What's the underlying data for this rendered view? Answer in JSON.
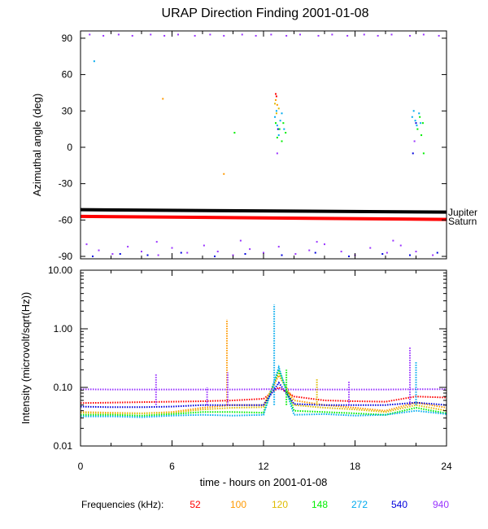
{
  "chart_data": [
    {
      "type": "scatter",
      "title": "URAP Direction Finding  2001-01-08",
      "ylabel": "Azimuthal angle (deg)",
      "xlabel": "",
      "xlim": [
        0,
        24
      ],
      "ylim": [
        -92,
        96
      ],
      "yticks": [
        90,
        60,
        30,
        0,
        -30,
        -60,
        -90
      ],
      "grid": false,
      "reference_lines": [
        {
          "name": "Jupiter",
          "color": "#000000",
          "y_start": -51.5,
          "y_end": -53.5
        },
        {
          "name": "Saturn",
          "color": "#ff0000",
          "y_start": -57,
          "y_end": -59.5
        }
      ],
      "series": [
        {
          "frequency": "940",
          "color": "#9933ff",
          "points": [
            [
              0.6,
              93
            ],
            [
              1.5,
              92
            ],
            [
              2.5,
              93
            ],
            [
              3.4,
              92
            ],
            [
              4.6,
              93
            ],
            [
              5.5,
              92
            ],
            [
              6.4,
              93
            ],
            [
              7.5,
              92
            ],
            [
              8.5,
              93
            ],
            [
              9.4,
              92
            ],
            [
              10.6,
              93
            ],
            [
              11.5,
              92
            ],
            [
              12.5,
              93
            ],
            [
              13.5,
              92
            ],
            [
              14.4,
              93
            ],
            [
              15.6,
              92
            ],
            [
              16.5,
              93
            ],
            [
              17.5,
              92
            ],
            [
              18.6,
              93
            ],
            [
              19.5,
              92
            ],
            [
              20.4,
              93
            ],
            [
              21.6,
              92
            ],
            [
              22.5,
              93
            ],
            [
              23.5,
              92
            ],
            [
              0.4,
              -80
            ],
            [
              1.2,
              -85
            ],
            [
              2.1,
              -88
            ],
            [
              3.1,
              -82
            ],
            [
              4.0,
              -86
            ],
            [
              5.1,
              -89
            ],
            [
              6.0,
              -83
            ],
            [
              7.0,
              -87
            ],
            [
              8.1,
              -81
            ],
            [
              9.0,
              -86
            ],
            [
              10.0,
              -89
            ],
            [
              11.1,
              -84
            ],
            [
              12.0,
              -87
            ],
            [
              13.0,
              -82
            ],
            [
              14.1,
              -88
            ],
            [
              15.0,
              -85
            ],
            [
              16.0,
              -80
            ],
            [
              17.1,
              -86
            ],
            [
              18.0,
              -89
            ],
            [
              19.0,
              -83
            ],
            [
              20.1,
              -87
            ],
            [
              21.0,
              -81
            ],
            [
              22.0,
              -86
            ],
            [
              23.1,
              -89
            ],
            [
              5.0,
              -78
            ],
            [
              10.5,
              -77
            ],
            [
              15.5,
              -78
            ],
            [
              20.5,
              -77
            ],
            [
              12.9,
              -5
            ],
            [
              21.9,
              5
            ]
          ]
        },
        {
          "frequency": "540",
          "color": "#0000dd",
          "points": [
            [
              0.8,
              -90
            ],
            [
              2.6,
              -88
            ],
            [
              4.4,
              -89
            ],
            [
              6.6,
              -87
            ],
            [
              8.8,
              -90
            ],
            [
              10.8,
              -88
            ],
            [
              13.2,
              -89
            ],
            [
              15.4,
              -87
            ],
            [
              17.6,
              -90
            ],
            [
              19.8,
              -88
            ],
            [
              21.6,
              -89
            ],
            [
              23.4,
              -87
            ],
            [
              12.95,
              15
            ],
            [
              22.0,
              20
            ],
            [
              21.8,
              -5
            ]
          ]
        },
        {
          "frequency": "272",
          "color": "#00aaee",
          "points": [
            [
              0.9,
              71
            ],
            [
              12.75,
              25
            ],
            [
              12.85,
              30
            ],
            [
              12.9,
              18
            ],
            [
              13.0,
              10
            ],
            [
              13.1,
              22
            ],
            [
              13.2,
              28
            ],
            [
              13.35,
              15
            ],
            [
              21.75,
              25
            ],
            [
              21.85,
              30
            ],
            [
              21.95,
              22
            ],
            [
              22.05,
              18
            ],
            [
              22.2,
              28
            ],
            [
              22.3,
              20
            ]
          ]
        },
        {
          "frequency": "148",
          "color": "#00ee00",
          "points": [
            [
              10.1,
              12
            ],
            [
              12.8,
              20
            ],
            [
              12.9,
              8
            ],
            [
              13.05,
              15
            ],
            [
              13.2,
              5
            ],
            [
              13.3,
              20
            ],
            [
              13.45,
              12
            ],
            [
              22.1,
              15
            ],
            [
              22.25,
              25
            ],
            [
              22.35,
              10
            ],
            [
              22.45,
              20
            ],
            [
              22.5,
              -5
            ]
          ]
        },
        {
          "frequency": "120",
          "color": "#ddbb00",
          "points": [
            [
              12.75,
              36
            ],
            [
              12.85,
              28
            ],
            [
              13.0,
              32
            ]
          ]
        },
        {
          "frequency": "100",
          "color": "#ff9900",
          "points": [
            [
              5.4,
              40
            ],
            [
              9.4,
              -22
            ],
            [
              12.8,
              39
            ],
            [
              12.9,
              35
            ]
          ]
        },
        {
          "frequency": "52",
          "color": "#ff0000",
          "points": [
            [
              12.8,
              44
            ],
            [
              12.85,
              42
            ]
          ]
        }
      ]
    },
    {
      "type": "line",
      "title": "",
      "ylabel": "Intensity (microvolt/sqrt(Hz))",
      "xlabel": "time - hours on 2001-01-08",
      "xlim": [
        0,
        24
      ],
      "ylim": [
        0.01,
        10
      ],
      "yscale": "log",
      "yticks": [
        "0.01",
        "0.10",
        "1.00",
        "10.00"
      ],
      "xticks": [
        "0",
        "6",
        "12",
        "18",
        "24"
      ],
      "grid": false,
      "bursts": [
        {
          "x": 4.95,
          "peak": 0.17,
          "frequency": "940"
        },
        {
          "x": 8.3,
          "peak": 0.1,
          "frequency": "940"
        },
        {
          "x": 9.6,
          "peak": 1.45,
          "frequency": "100"
        },
        {
          "x": 9.65,
          "peak": 0.18,
          "frequency": "940"
        },
        {
          "x": 12.7,
          "peak": 2.6,
          "frequency": "272"
        },
        {
          "x": 13.5,
          "peak": 0.2,
          "frequency": "148"
        },
        {
          "x": 15.5,
          "peak": 0.14,
          "frequency": "120"
        },
        {
          "x": 17.6,
          "peak": 0.13,
          "frequency": "940"
        },
        {
          "x": 21.6,
          "peak": 0.5,
          "frequency": "940"
        },
        {
          "x": 22.0,
          "peak": 0.28,
          "frequency": "272"
        }
      ],
      "series": [
        {
          "frequency": "52",
          "color": "#ff0000",
          "x": [
            0,
            2,
            4,
            6,
            8,
            10,
            12,
            13,
            14,
            16,
            18,
            20,
            22,
            24
          ],
          "values": [
            0.054,
            0.055,
            0.056,
            0.057,
            0.058,
            0.06,
            0.064,
            0.1,
            0.07,
            0.06,
            0.058,
            0.057,
            0.07,
            0.067
          ]
        },
        {
          "frequency": "100",
          "color": "#ff9900",
          "x": [
            0,
            2,
            4,
            6,
            8,
            10,
            12,
            13,
            14,
            16,
            18,
            20,
            22,
            24
          ],
          "values": [
            0.038,
            0.037,
            0.036,
            0.038,
            0.045,
            0.05,
            0.05,
            0.16,
            0.06,
            0.05,
            0.045,
            0.04,
            0.055,
            0.045
          ]
        },
        {
          "frequency": "120",
          "color": "#ddbb00",
          "x": [
            0,
            2,
            4,
            6,
            8,
            10,
            12,
            13,
            14,
            16,
            18,
            20,
            22,
            24
          ],
          "values": [
            0.037,
            0.036,
            0.036,
            0.037,
            0.042,
            0.045,
            0.046,
            0.18,
            0.05,
            0.045,
            0.042,
            0.038,
            0.05,
            0.04
          ]
        },
        {
          "frequency": "148",
          "color": "#00ee00",
          "x": [
            0,
            2,
            4,
            6,
            8,
            10,
            12,
            13,
            14,
            16,
            18,
            20,
            22,
            24
          ],
          "values": [
            0.034,
            0.034,
            0.033,
            0.035,
            0.038,
            0.038,
            0.037,
            0.2,
            0.04,
            0.038,
            0.036,
            0.034,
            0.045,
            0.036
          ]
        },
        {
          "frequency": "272",
          "color": "#00aaee",
          "x": [
            0,
            2,
            4,
            6,
            8,
            10,
            12,
            13,
            14,
            16,
            18,
            20,
            22,
            24
          ],
          "values": [
            0.032,
            0.032,
            0.031,
            0.033,
            0.034,
            0.033,
            0.034,
            0.22,
            0.034,
            0.035,
            0.033,
            0.034,
            0.04,
            0.035
          ]
        },
        {
          "frequency": "540",
          "color": "#0000dd",
          "x": [
            0,
            2,
            4,
            6,
            8,
            10,
            12,
            13,
            14,
            16,
            18,
            20,
            22,
            24
          ],
          "values": [
            0.047,
            0.046,
            0.046,
            0.047,
            0.05,
            0.05,
            0.05,
            0.12,
            0.052,
            0.05,
            0.05,
            0.05,
            0.055,
            0.05
          ]
        },
        {
          "frequency": "940",
          "color": "#9933ff",
          "x": [
            0,
            2,
            4,
            6,
            8,
            10,
            12,
            13,
            14,
            16,
            18,
            20,
            22,
            24
          ],
          "values": [
            0.093,
            0.092,
            0.092,
            0.092,
            0.092,
            0.092,
            0.093,
            0.093,
            0.092,
            0.092,
            0.092,
            0.092,
            0.093,
            0.093
          ]
        }
      ]
    }
  ],
  "legend": {
    "label": "Frequencies (kHz):",
    "items": [
      {
        "value": "52",
        "color": "#ff0000"
      },
      {
        "value": "100",
        "color": "#ff9900"
      },
      {
        "value": "120",
        "color": "#ddbb00"
      },
      {
        "value": "148",
        "color": "#00ee00"
      },
      {
        "value": "272",
        "color": "#00aaee"
      },
      {
        "value": "540",
        "color": "#0000dd"
      },
      {
        "value": "940",
        "color": "#9933ff"
      }
    ]
  }
}
